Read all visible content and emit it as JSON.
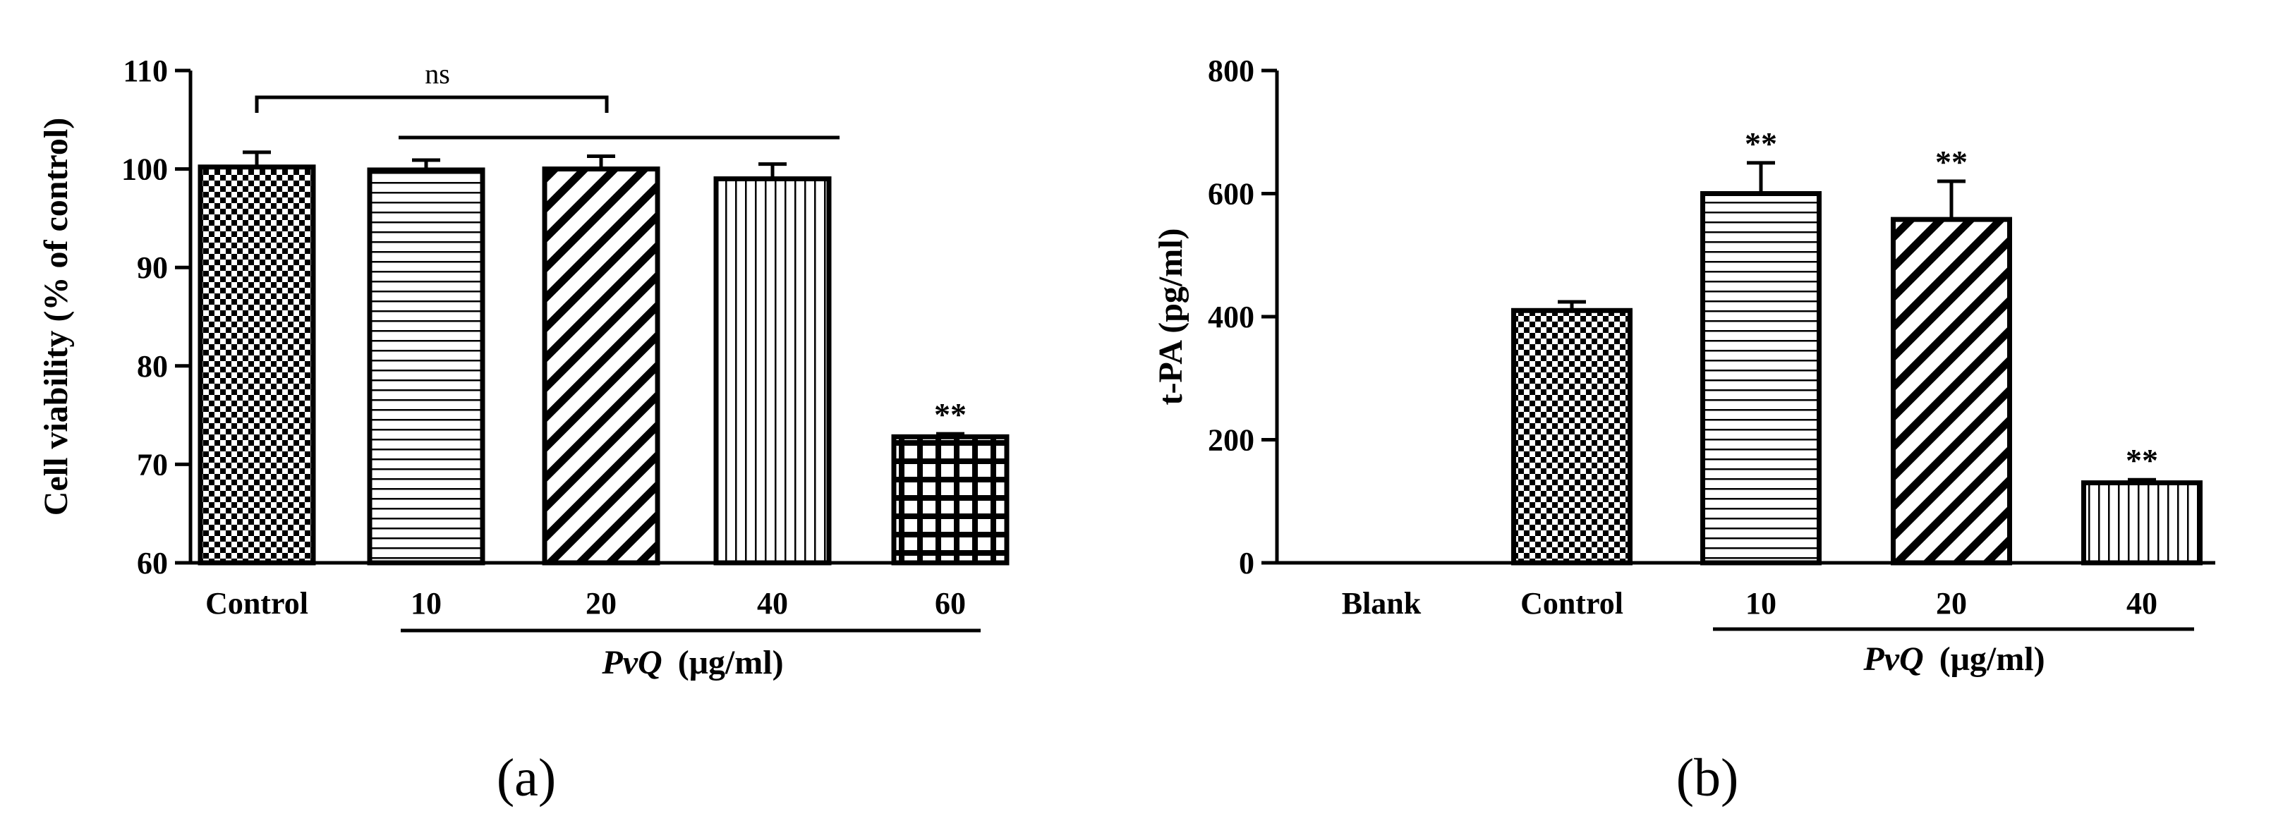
{
  "chart_data": [
    {
      "type": "bar",
      "panel_label": "(a)",
      "ylabel": "Cell viability (% of control)",
      "xlabel_group": {
        "italic": "PvQ",
        "rest": "(μg/ml)"
      },
      "ylim": [
        60,
        110
      ],
      "yticks": [
        "60",
        "70",
        "80",
        "90",
        "100",
        "110"
      ],
      "categories": [
        "Control",
        "10",
        "20",
        "40",
        "60"
      ],
      "values": [
        100.2,
        99.9,
        100.0,
        99.0,
        72.8
      ],
      "errors": [
        1.5,
        1.0,
        1.3,
        1.5,
        0.3
      ],
      "patterns": [
        "checker",
        "hlines",
        "diag",
        "vlines",
        "grid"
      ],
      "annotations": [
        "",
        "",
        "",
        "",
        "**"
      ],
      "bracket_label": "ns"
    },
    {
      "type": "bar",
      "panel_label": "(b)",
      "ylabel": "t-PA (pg/ml)",
      "xlabel_group": {
        "italic": "PvQ",
        "rest": "(μg/ml)"
      },
      "ylim": [
        0,
        800
      ],
      "yticks": [
        "0",
        "200",
        "400",
        "600",
        "800"
      ],
      "categories": [
        "Blank",
        "Control",
        "10",
        "20",
        "40"
      ],
      "values": [
        0,
        410,
        600,
        558,
        130
      ],
      "errors": [
        0,
        14,
        50,
        62,
        5
      ],
      "patterns": [
        "none",
        "checker",
        "hlines",
        "diag",
        "vlines"
      ],
      "annotations": [
        "",
        "",
        "**",
        "**",
        "**"
      ]
    }
  ]
}
